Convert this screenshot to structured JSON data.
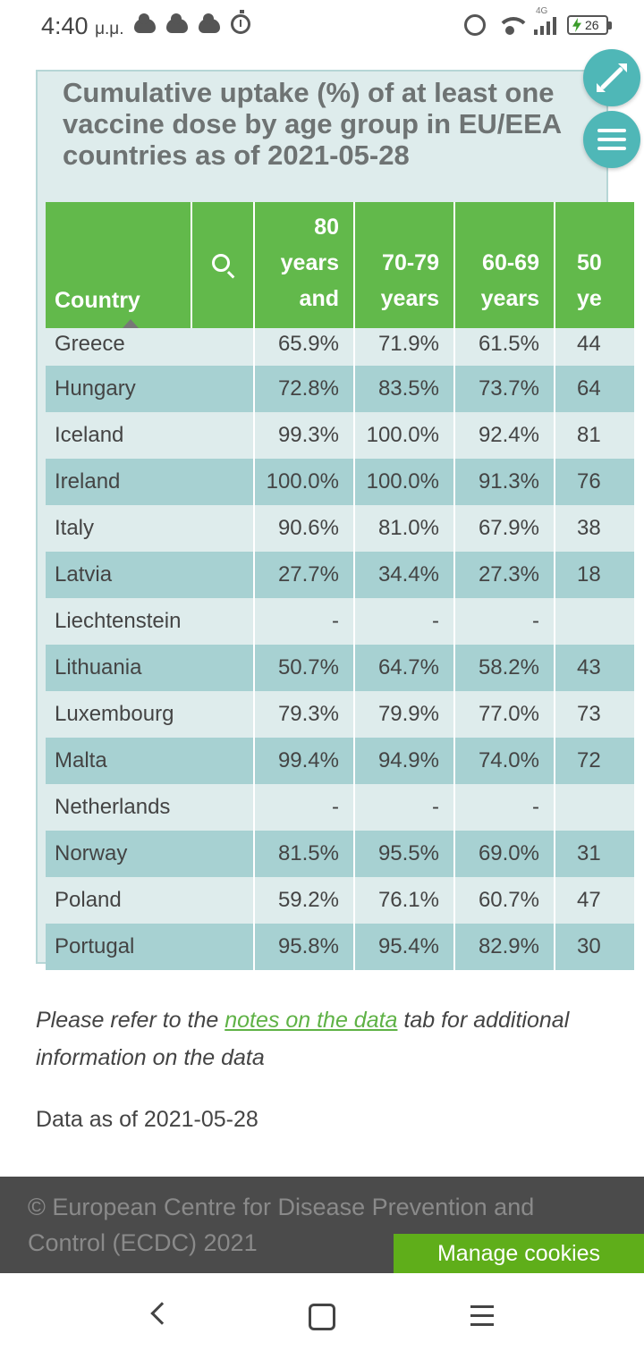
{
  "status_bar": {
    "time": "4:40",
    "ampm": "μ.μ.",
    "network": "4G",
    "battery": "26"
  },
  "card": {
    "title": "Cumulative uptake (%) of at least one vaccine dose by age group in EU/EEA countries as of 2021-05-28"
  },
  "table": {
    "headers": {
      "country": "Country",
      "c80": [
        "80",
        "years",
        "and"
      ],
      "c70": [
        "70-79",
        "years"
      ],
      "c60": [
        "60-69",
        "years"
      ],
      "c50": [
        "50",
        "ye"
      ]
    },
    "rows": [
      {
        "country": "Greece",
        "c80": "65.9%",
        "c70": "71.9%",
        "c60": "61.5%",
        "c50": "44"
      },
      {
        "country": "Hungary",
        "c80": "72.8%",
        "c70": "83.5%",
        "c60": "73.7%",
        "c50": "64"
      },
      {
        "country": "Iceland",
        "c80": "99.3%",
        "c70": "100.0%",
        "c60": "92.4%",
        "c50": "81"
      },
      {
        "country": "Ireland",
        "c80": "100.0%",
        "c70": "100.0%",
        "c60": "91.3%",
        "c50": "76"
      },
      {
        "country": "Italy",
        "c80": "90.6%",
        "c70": "81.0%",
        "c60": "67.9%",
        "c50": "38"
      },
      {
        "country": "Latvia",
        "c80": "27.7%",
        "c70": "34.4%",
        "c60": "27.3%",
        "c50": "18"
      },
      {
        "country": "Liechtenstein",
        "c80": "-",
        "c70": "-",
        "c60": "-",
        "c50": ""
      },
      {
        "country": "Lithuania",
        "c80": "50.7%",
        "c70": "64.7%",
        "c60": "58.2%",
        "c50": "43"
      },
      {
        "country": "Luxembourg",
        "c80": "79.3%",
        "c70": "79.9%",
        "c60": "77.0%",
        "c50": "73"
      },
      {
        "country": "Malta",
        "c80": "99.4%",
        "c70": "94.9%",
        "c60": "74.0%",
        "c50": "72"
      },
      {
        "country": "Netherlands",
        "c80": "-",
        "c70": "-",
        "c60": "-",
        "c50": ""
      },
      {
        "country": "Norway",
        "c80": "81.5%",
        "c70": "95.5%",
        "c60": "69.0%",
        "c50": "31"
      },
      {
        "country": "Poland",
        "c80": "59.2%",
        "c70": "76.1%",
        "c60": "60.7%",
        "c50": "47"
      },
      {
        "country": "Portugal",
        "c80": "95.8%",
        "c70": "95.4%",
        "c60": "82.9%",
        "c50": "30"
      }
    ]
  },
  "notes": {
    "prefix": "Please refer to the ",
    "link": "notes on the data",
    "suffix": " tab for additional information on the data"
  },
  "data_as_of": "Data as of 2021-05-28",
  "footer": {
    "copyright": "© European Centre for Disease Prevention and Control (ECDC) 2021",
    "cookies_button": "Manage cookies"
  },
  "colors": {
    "header_green": "#62b94b",
    "row_teal": "#a7d1d2",
    "row_light": "#deecec",
    "fab": "#4fb7b7",
    "cookies_green": "#5fae1a"
  }
}
